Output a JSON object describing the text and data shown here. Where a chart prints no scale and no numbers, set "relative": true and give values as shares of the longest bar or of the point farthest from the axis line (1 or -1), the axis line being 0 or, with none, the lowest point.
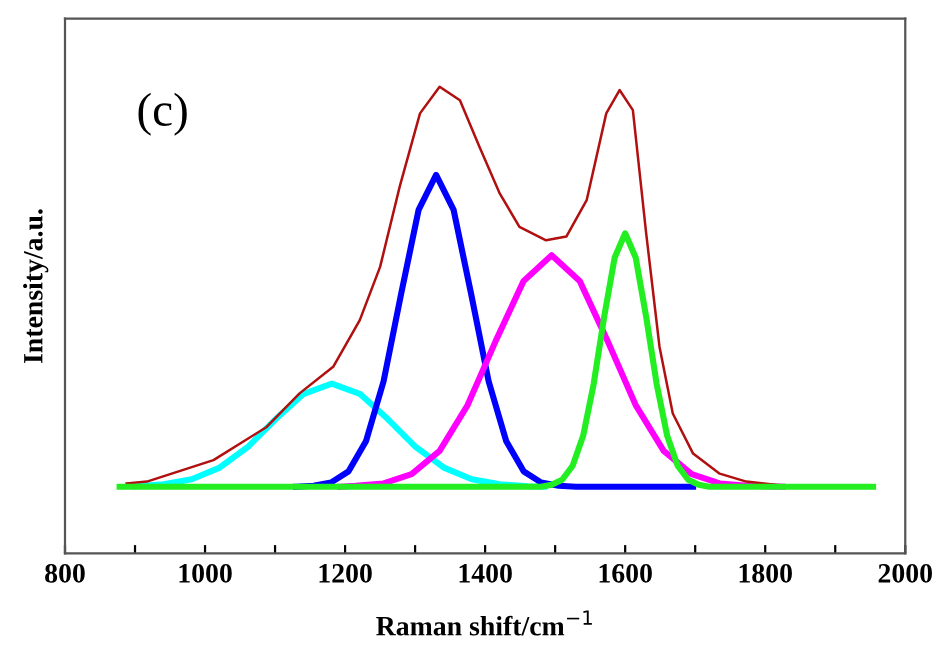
{
  "chart_data": {
    "type": "line",
    "relative": true,
    "xlabel": "Raman shift/cm$^{−1}$",
    "ylabel": "Intensity/a.u.",
    "annotations": [
      "(c)"
    ],
    "xlim": [
      800,
      2000
    ],
    "xticks": [
      800,
      {
        "value": 900,
        "label": null
      },
      1000,
      {
        "value": 1100,
        "label": null
      },
      1200,
      {
        "value": 1300,
        "label": null
      },
      1400,
      {
        "value": 1500,
        "label": null
      },
      1600,
      {
        "value": 1700,
        "label": null
      },
      1800,
      {
        "value": 1900,
        "label": null
      },
      2000
    ],
    "tick_labels": "x",
    "grid": false,
    "legend": false,
    "marker": "none",
    "line_style": "solid",
    "series": [
      {
        "color": "#00ffff",
        "x": [
          901,
          941,
          981,
          1021,
          1061,
          1101,
          1141,
          1181,
          1221,
          1261,
          1301,
          1341,
          1381,
          1421,
          1461,
          1485
        ],
        "values": [
          0.144,
          0.148,
          0.159,
          0.184,
          0.228,
          0.288,
          0.342,
          0.364,
          0.342,
          0.288,
          0.228,
          0.184,
          0.159,
          0.148,
          0.144,
          0.143
        ]
      },
      {
        "color": "#0000ff",
        "x": [
          1130,
          1155,
          1180,
          1205,
          1230,
          1255,
          1280,
          1305,
          1330,
          1355,
          1380,
          1405,
          1430,
          1455,
          1480,
          1505,
          1530,
          1697
        ],
        "values": [
          0.143,
          0.145,
          0.152,
          0.176,
          0.241,
          0.369,
          0.556,
          0.736,
          0.811,
          0.736,
          0.556,
          0.369,
          0.241,
          0.176,
          0.152,
          0.145,
          0.143,
          0.143
        ]
      },
      {
        "color": "#ff00ff",
        "x": [
          1193,
          1215,
          1255,
          1295,
          1335,
          1375,
          1415,
          1455,
          1495,
          1535,
          1575,
          1615,
          1655,
          1695,
          1735,
          1775,
          1825
        ],
        "values": [
          0.143,
          0.145,
          0.15,
          0.17,
          0.22,
          0.318,
          0.455,
          0.584,
          0.639,
          0.584,
          0.455,
          0.318,
          0.22,
          0.17,
          0.15,
          0.145,
          0.143
        ]
      },
      {
        "color": "#b01010",
        "x": [
          888,
          917,
          1012,
          1088,
          1135,
          1183,
          1221,
          1250,
          1278,
          1307,
          1335,
          1364,
          1392,
          1421,
          1449,
          1487,
          1516,
          1545,
          1573,
          1592,
          1611,
          1630,
          1649,
          1668,
          1697,
          1735,
          1773,
          1821
        ],
        "values": [
          0.15,
          0.154,
          0.2,
          0.271,
          0.343,
          0.4,
          0.5,
          0.614,
          0.786,
          0.943,
          1.0,
          0.971,
          0.871,
          0.771,
          0.7,
          0.671,
          0.679,
          0.757,
          0.943,
          0.993,
          0.95,
          0.686,
          0.443,
          0.3,
          0.214,
          0.171,
          0.154,
          0.146
        ]
      },
      {
        "color": "#22ee22",
        "x": [
          878,
          1480,
          1495,
          1510,
          1525,
          1540,
          1555,
          1570,
          1585,
          1600,
          1615,
          1630,
          1645,
          1660,
          1675,
          1690,
          1705,
          1720,
          1954
        ],
        "values": [
          0.143,
          0.143,
          0.147,
          0.158,
          0.188,
          0.252,
          0.363,
          0.507,
          0.634,
          0.686,
          0.634,
          0.507,
          0.363,
          0.252,
          0.188,
          0.158,
          0.147,
          0.143,
          0.143
        ]
      }
    ]
  }
}
